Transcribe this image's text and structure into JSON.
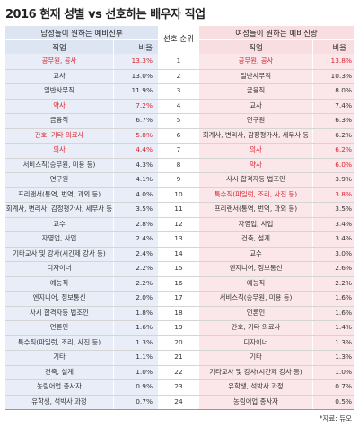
{
  "title": "2016 현재 성별 vs 선호하는 배우자 직업",
  "colors": {
    "highlight": "#d9232e",
    "male_header": "#dde4f2",
    "female_header": "#f8dde1"
  },
  "left_header": {
    "title": "남성들이 원하는 예비신부",
    "job": "직업",
    "pct": "비율"
  },
  "rank_header": "선호 순위",
  "right_header": {
    "title": "여성들이 원하는 예비신랑",
    "job": "직업",
    "pct": "비율"
  },
  "source": "*자료: 듀오",
  "chart_data": {
    "type": "table",
    "title": "2016 현재 성별 vs 선호하는 배우자 직업",
    "columns": [
      "직업",
      "비율",
      "선호 순위",
      "직업",
      "비율"
    ],
    "rows": [
      {
        "rank": "1",
        "male_job": "공무원, 공사",
        "male_pct": "13.3%",
        "male_highlight": true,
        "female_job": "공무원, 공사",
        "female_pct": "13.8%",
        "female_highlight": true
      },
      {
        "rank": "2",
        "male_job": "교사",
        "male_pct": "13.0%",
        "male_highlight": false,
        "female_job": "일반사무직",
        "female_pct": "10.3%",
        "female_highlight": false
      },
      {
        "rank": "3",
        "male_job": "일반사무직",
        "male_pct": "11.9%",
        "male_highlight": false,
        "female_job": "금융직",
        "female_pct": "8.0%",
        "female_highlight": false
      },
      {
        "rank": "4",
        "male_job": "약사",
        "male_pct": "7.2%",
        "male_highlight": true,
        "female_job": "교사",
        "female_pct": "7.4%",
        "female_highlight": false
      },
      {
        "rank": "5",
        "male_job": "금융직",
        "male_pct": "6.7%",
        "male_highlight": false,
        "female_job": "연구원",
        "female_pct": "6.3%",
        "female_highlight": false
      },
      {
        "rank": "6",
        "male_job": "간호, 기타 의료사",
        "male_pct": "5.8%",
        "male_highlight": true,
        "female_job": "회계사, 변리사, 감정평가사, 세무사 등",
        "female_pct": "6.2%",
        "female_highlight": false
      },
      {
        "rank": "7",
        "male_job": "의사",
        "male_pct": "4.4%",
        "male_highlight": true,
        "female_job": "의사",
        "female_pct": "6.2%",
        "female_highlight": true
      },
      {
        "rank": "8",
        "male_job": "서비스직(승무원, 미용 등)",
        "male_pct": "4.3%",
        "male_highlight": false,
        "female_job": "약사",
        "female_pct": "6.0%",
        "female_highlight": true
      },
      {
        "rank": "9",
        "male_job": "연구원",
        "male_pct": "4.1%",
        "male_highlight": false,
        "female_job": "사시 합격자등 법조인",
        "female_pct": "3.9%",
        "female_highlight": false
      },
      {
        "rank": "10",
        "male_job": "프리랜서(통역, 번역, 과외 등)",
        "male_pct": "4.0%",
        "male_highlight": false,
        "female_job": "특수직(파일럿, 조리, 사진 등)",
        "female_pct": "3.8%",
        "female_highlight": true
      },
      {
        "rank": "11",
        "male_job": "회계사, 변리사, 감정평가사, 세무사 등",
        "male_pct": "3.5%",
        "male_highlight": false,
        "female_job": "프리랜서(통역, 번역, 과외 등)",
        "female_pct": "3.5%",
        "female_highlight": false
      },
      {
        "rank": "12",
        "male_job": "교수",
        "male_pct": "2.8%",
        "male_highlight": false,
        "female_job": "자영업, 사업",
        "female_pct": "3.4%",
        "female_highlight": false
      },
      {
        "rank": "13",
        "male_job": "자영업, 사업",
        "male_pct": "2.4%",
        "male_highlight": false,
        "female_job": "건축, 설계",
        "female_pct": "3.4%",
        "female_highlight": false
      },
      {
        "rank": "14",
        "male_job": "기타교사 및 강사(시간제 강사 등)",
        "male_pct": "2.4%",
        "male_highlight": false,
        "female_job": "교수",
        "female_pct": "3.0%",
        "female_highlight": false
      },
      {
        "rank": "15",
        "male_job": "디자이너",
        "male_pct": "2.2%",
        "male_highlight": false,
        "female_job": "엔지니어, 정보통신",
        "female_pct": "2.6%",
        "female_highlight": false
      },
      {
        "rank": "16",
        "male_job": "예능직",
        "male_pct": "2.2%",
        "male_highlight": false,
        "female_job": "예능직",
        "female_pct": "2.2%",
        "female_highlight": false
      },
      {
        "rank": "17",
        "male_job": "엔지니어, 정보통신",
        "male_pct": "2.0%",
        "male_highlight": false,
        "female_job": "서비스직(승무원, 미용 등)",
        "female_pct": "1.6%",
        "female_highlight": false
      },
      {
        "rank": "18",
        "male_job": "사시 합격자등 법조인",
        "male_pct": "1.8%",
        "male_highlight": false,
        "female_job": "언론인",
        "female_pct": "1.6%",
        "female_highlight": false
      },
      {
        "rank": "19",
        "male_job": "언론인",
        "male_pct": "1.6%",
        "male_highlight": false,
        "female_job": "간호, 기타 의료사",
        "female_pct": "1.4%",
        "female_highlight": false
      },
      {
        "rank": "20",
        "male_job": "특수직(파일럿, 조리, 사진 등)",
        "male_pct": "1.3%",
        "male_highlight": false,
        "female_job": "디자이너",
        "female_pct": "1.3%",
        "female_highlight": false
      },
      {
        "rank": "21",
        "male_job": "기타",
        "male_pct": "1.1%",
        "male_highlight": false,
        "female_job": "기타",
        "female_pct": "1.3%",
        "female_highlight": false
      },
      {
        "rank": "22",
        "male_job": "건축, 설계",
        "male_pct": "1.0%",
        "male_highlight": false,
        "female_job": "기타교사 및 강사(시간제 강사 등)",
        "female_pct": "1.0%",
        "female_highlight": false
      },
      {
        "rank": "23",
        "male_job": "농림어업 종사자",
        "male_pct": "0.9%",
        "male_highlight": false,
        "female_job": "유학생, 석박사 과정",
        "female_pct": "0.7%",
        "female_highlight": false
      },
      {
        "rank": "24",
        "male_job": "유학생, 석박사 과정",
        "male_pct": "0.7%",
        "male_highlight": false,
        "female_job": "농림어업 종사자",
        "female_pct": "0.5%",
        "female_highlight": false
      }
    ]
  }
}
